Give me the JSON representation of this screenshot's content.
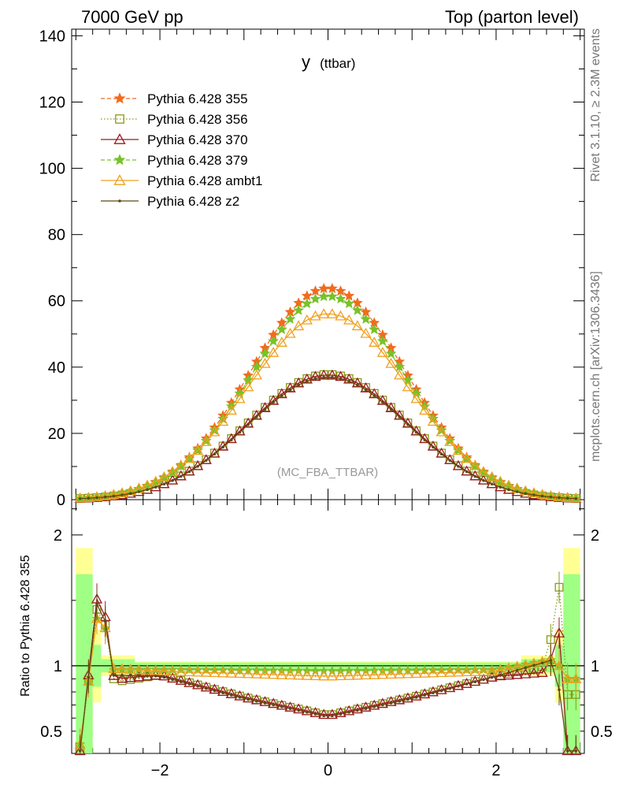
{
  "header": {
    "left": "7000 GeV pp",
    "right": "Top (parton level)"
  },
  "side_labels": {
    "rivet": "Rivet 3.1.10, ≥ 2.3M events",
    "source": "mcplots.cern.ch [arXiv:1306.3436]"
  },
  "chart_data": [
    {
      "type": "line",
      "title": "y",
      "title_sub": "(ttbar)",
      "annotation": "(MC_FBA_TTBAR)",
      "xlim": [
        -3.05,
        3.05
      ],
      "ylim": [
        0,
        142
      ],
      "yticks": [
        0,
        20,
        40,
        60,
        80,
        100,
        120,
        140
      ],
      "legend_placement": "top-left",
      "colors": {
        "p355": "#f26a1e",
        "p356": "#8a9a1a",
        "p370": "#9b1b22",
        "p379": "#78c22a",
        "ambt1": "#f0a01c",
        "z2": "#5c4a12"
      },
      "series": [
        {
          "key": "p355",
          "name": "Pythia 6.428 355",
          "peak": 63.8,
          "width": 0.92,
          "marker": "star",
          "dash": "5,3"
        },
        {
          "key": "p356",
          "name": "Pythia 6.428 356",
          "peak": 37.8,
          "width": 0.96,
          "marker": "square",
          "dash": "1.5,2.5"
        },
        {
          "key": "p370",
          "name": "Pythia 6.428 370",
          "peak": 37.6,
          "width": 0.96,
          "marker": "triangle",
          "dash": ""
        },
        {
          "key": "p379",
          "name": "Pythia 6.428 379",
          "peak": 61.4,
          "width": 0.92,
          "marker": "star",
          "dash": "5,3"
        },
        {
          "key": "ambt1",
          "name": "Pythia 6.428 ambt1",
          "peak": 56.1,
          "width": 0.95,
          "marker": "triangle",
          "dash": ""
        },
        {
          "key": "z2",
          "name": "Pythia 6.428 z2",
          "peak": 37.0,
          "width": 0.96,
          "marker": "dot",
          "dash": ""
        }
      ]
    },
    {
      "type": "line",
      "ylabel": "Ratio to Pythia 6.428 355",
      "xlim": [
        -3.05,
        3.05
      ],
      "ylim": [
        0.33,
        2.27
      ],
      "yticks": [
        0.5,
        1,
        2
      ],
      "xticks": [
        -2,
        0,
        2
      ],
      "reference": 1.0,
      "series": [
        {
          "key": "p356",
          "values_at": [
            [
              -2.95,
              0.35
            ],
            [
              -2.7,
              1.7
            ],
            [
              -2.6,
              0.92
            ],
            [
              -2.5,
              0.88
            ],
            [
              -2.0,
              0.93
            ],
            [
              -1.0,
              0.76
            ],
            [
              0.0,
              0.62
            ],
            [
              1.0,
              0.76
            ],
            [
              2.0,
              0.92
            ],
            [
              2.6,
              1.0
            ],
            [
              2.75,
              1.6
            ],
            [
              2.85,
              0.78
            ]
          ]
        },
        {
          "key": "p370",
          "values_at": [
            [
              -2.95,
              0.35
            ],
            [
              -2.7,
              1.8
            ],
            [
              -2.6,
              0.95
            ],
            [
              -2.5,
              0.9
            ],
            [
              -2.0,
              0.93
            ],
            [
              -1.0,
              0.76
            ],
            [
              0.0,
              0.62
            ],
            [
              1.0,
              0.76
            ],
            [
              2.0,
              0.92
            ],
            [
              2.6,
              0.95
            ],
            [
              2.75,
              1.25
            ],
            [
              2.85,
              0.35
            ]
          ]
        },
        {
          "key": "p379",
          "values_at": [
            [
              -2.95,
              0.4
            ],
            [
              -2.7,
              1.6
            ],
            [
              -2.6,
              0.97
            ],
            [
              -2.0,
              0.97
            ],
            [
              0.0,
              0.96
            ],
            [
              2.0,
              0.97
            ],
            [
              2.7,
              1.05
            ],
            [
              2.85,
              0.9
            ]
          ]
        },
        {
          "key": "ambt1",
          "values_at": [
            [
              -2.95,
              0.4
            ],
            [
              -2.7,
              1.6
            ],
            [
              -2.6,
              0.98
            ],
            [
              -2.0,
              0.96
            ],
            [
              0.0,
              0.92
            ],
            [
              2.0,
              0.96
            ],
            [
              2.7,
              1.05
            ],
            [
              2.85,
              0.9
            ]
          ]
        },
        {
          "key": "z2",
          "values_at": [
            [
              -2.95,
              0.35
            ],
            [
              -2.7,
              1.75
            ],
            [
              -2.6,
              0.93
            ],
            [
              -2.0,
              0.92
            ],
            [
              -1.0,
              0.75
            ],
            [
              0.0,
              0.61
            ],
            [
              1.0,
              0.75
            ],
            [
              2.0,
              0.92
            ],
            [
              2.7,
              1.05
            ],
            [
              2.85,
              0.35
            ]
          ]
        }
      ]
    }
  ]
}
